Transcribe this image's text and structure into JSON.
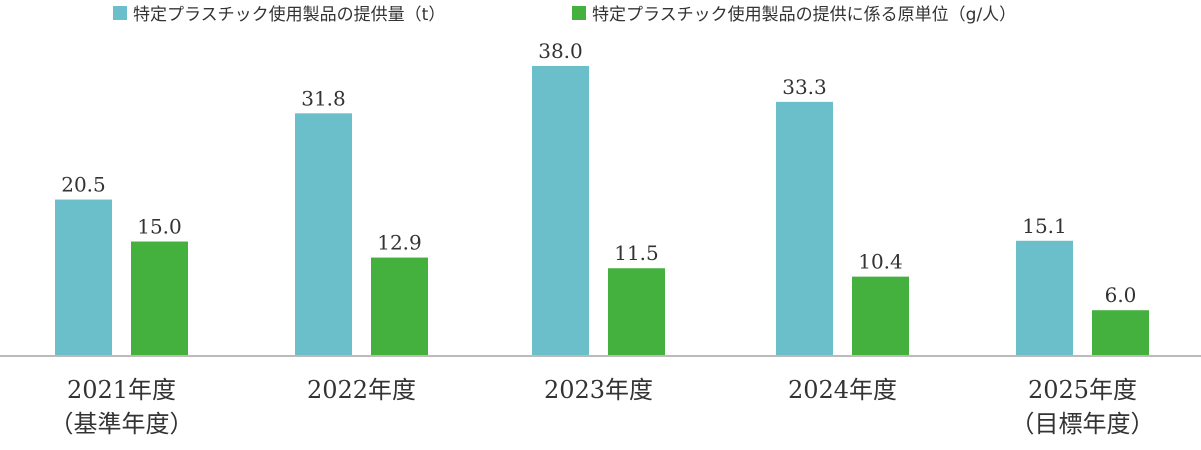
{
  "chart_data": {
    "type": "bar",
    "title": "",
    "xlabel": "",
    "ylabel": "",
    "categories": [
      [
        "2021年度",
        "（基準年度）"
      ],
      [
        "2022年度"
      ],
      [
        "2023年度"
      ],
      [
        "2024年度"
      ],
      [
        "2025年度",
        "（目標年度）"
      ]
    ],
    "series": [
      {
        "name": "特定プラスチック使用製品の提供量（t）",
        "color": "#6bbfcb",
        "values": [
          20.5,
          31.8,
          38.0,
          33.3,
          15.1
        ]
      },
      {
        "name": "特定プラスチック使用製品の提供に係る原単位（g/人）",
        "color": "#44b03e",
        "values": [
          15.0,
          12.9,
          11.5,
          10.4,
          6.0
        ]
      }
    ],
    "ylim": [
      0,
      38.0
    ],
    "grid": false,
    "legend": "top",
    "value_labels": true,
    "baseline_color": "#bbbbbb"
  }
}
